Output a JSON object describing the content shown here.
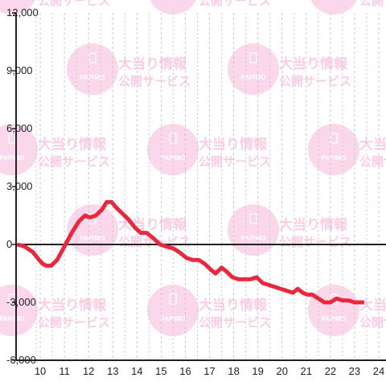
{
  "watermark": {
    "brand": "PAPIMO",
    "line1": "大当り情報",
    "line2": "公開サービス",
    "color": "#f7b8da"
  },
  "colors": {
    "line": "#e8283c",
    "axis": "#222222",
    "grid": "#c8c8c8"
  },
  "chart_data": {
    "type": "line",
    "title": "",
    "xlabel": "",
    "ylabel": "",
    "xlim": [
      9.0,
      24.3
    ],
    "ylim": [
      -6000,
      12000
    ],
    "x_ticks": [
      10,
      11,
      12,
      13,
      14,
      15,
      16,
      17,
      18,
      19,
      20,
      21,
      22,
      23,
      24
    ],
    "y_ticks": [
      -6000,
      -3000,
      0,
      3000,
      6000,
      9000,
      12000
    ],
    "y_tick_labels": [
      "-6,000",
      "-3,000",
      "0",
      "3,000",
      "6,000",
      "9,000",
      "12,000"
    ],
    "x_tick_labels": [
      "10",
      "11",
      "12",
      "13",
      "14",
      "15",
      "16",
      "17",
      "18",
      "19",
      "20",
      "21",
      "22",
      "23",
      "24"
    ],
    "zero_line": true,
    "grid": "vertical dashed",
    "series": [
      {
        "x": [
          9.05,
          9.35,
          9.7,
          9.95,
          10.1,
          10.25,
          10.45,
          10.7,
          11.0,
          11.3,
          11.6,
          11.85,
          12.05,
          12.3,
          12.55,
          12.75,
          12.95,
          13.15,
          13.4,
          13.65,
          13.9,
          14.15,
          14.4,
          14.7,
          14.95,
          15.2,
          15.5,
          15.75,
          16.05,
          16.3,
          16.55,
          16.8,
          17.05,
          17.25,
          17.5,
          17.7,
          17.95,
          18.2,
          18.45,
          18.7,
          18.95,
          19.2,
          19.45,
          19.7,
          19.95,
          20.2,
          20.45,
          20.65,
          20.85,
          21.05,
          21.25,
          21.5,
          21.75,
          22.0,
          22.25,
          22.5,
          22.75,
          23.0,
          23.4
        ],
        "y": [
          0,
          -100,
          -400,
          -800,
          -1000,
          -1100,
          -1100,
          -800,
          -100,
          600,
          1200,
          1500,
          1400,
          1500,
          1800,
          2200,
          2200,
          1900,
          1600,
          1300,
          900,
          600,
          600,
          300,
          0,
          -100,
          -200,
          -400,
          -700,
          -800,
          -800,
          -1000,
          -1300,
          -1500,
          -1200,
          -1400,
          -1700,
          -1800,
          -1800,
          -1800,
          -1700,
          -2000,
          -2100,
          -2200,
          -2300,
          -2400,
          -2500,
          -2300,
          -2500,
          -2600,
          -2600,
          -2800,
          -3000,
          -3000,
          -2800,
          -2900,
          -2900,
          -3000,
          -3000
        ]
      }
    ]
  }
}
